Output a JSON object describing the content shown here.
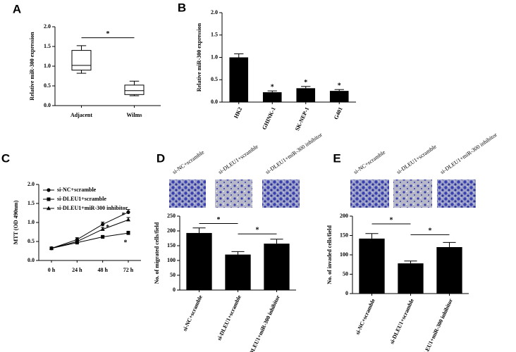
{
  "chart_data": [
    {
      "type": "box",
      "label": "A",
      "ylabel": "Relative miR-300 expression",
      "categories": [
        "Adjacent",
        "Wilms"
      ],
      "values": [
        {
          "min": 0.82,
          "q1": 0.9,
          "median": 1.02,
          "q3": 1.4,
          "max": 1.52
        },
        {
          "min": 0.25,
          "q1": 0.28,
          "median": 0.38,
          "q3": 0.52,
          "max": 0.62
        }
      ],
      "color": "#000000",
      "ylim": [
        0,
        2.0
      ],
      "yticks": [
        {
          "value": 0,
          "label": "0.0"
        },
        {
          "value": 0.5,
          "label": "0.5"
        },
        {
          "value": 1.0,
          "label": "1.0"
        },
        {
          "value": 1.5,
          "label": "1.5"
        },
        {
          "value": 2.0,
          "label": "2.0"
        }
      ],
      "annotations": [
        "*"
      ]
    },
    {
      "type": "bar",
      "label": "B",
      "ylabel": "Relative miR-300 expression",
      "categories": [
        "HK2",
        "GHINK-1",
        "SK-NEP-1",
        "G401"
      ],
      "values": [
        1.0,
        0.22,
        0.31,
        0.25
      ],
      "errors": [
        0.08,
        0.03,
        0.04,
        0.03
      ],
      "color": "#000000",
      "ylim": [
        0,
        2.0
      ],
      "yticks": [
        {
          "value": 0,
          "label": "0.0"
        },
        {
          "value": 0.5,
          "label": "0.5"
        },
        {
          "value": 1.0,
          "label": "1.0"
        },
        {
          "value": 1.5,
          "label": "1.5"
        },
        {
          "value": 2.0,
          "label": "2.0"
        }
      ],
      "annotations": [
        "*",
        "*",
        "*"
      ]
    },
    {
      "type": "line",
      "label": "C",
      "ylabel": "MTT (OD 490nm)",
      "categories": [
        "0 h",
        "24 h",
        "48 h",
        "72 h"
      ],
      "series": [
        {
          "name": "si-NC+scramble",
          "color": "#000000",
          "marker": "circle",
          "values": [
            0.32,
            0.55,
            0.95,
            1.27
          ],
          "errors": [
            0.03,
            0.05,
            0.06,
            0.07
          ]
        },
        {
          "name": "si-DLEU1+scramble",
          "color": "#000000",
          "marker": "square",
          "values": [
            0.32,
            0.47,
            0.62,
            0.72
          ],
          "errors": [
            0.03,
            0.04,
            0.04,
            0.05
          ]
        },
        {
          "name": "si-DLEU1+miR-300 inhibitor",
          "color": "#000000",
          "marker": "triangle",
          "values": [
            0.32,
            0.5,
            0.82,
            1.07
          ],
          "errors": [
            0.03,
            0.04,
            0.05,
            0.06
          ]
        }
      ],
      "ylim": [
        0,
        2.0
      ],
      "yticks": [
        {
          "value": 0,
          "label": "0.0"
        },
        {
          "value": 0.5,
          "label": "0.5"
        },
        {
          "value": 1.0,
          "label": "1.0"
        },
        {
          "value": 1.5,
          "label": "1.5"
        },
        {
          "value": 2.0,
          "label": "2.0"
        }
      ],
      "legend": "top-left",
      "annotations": [
        "*",
        "*",
        "*"
      ]
    },
    {
      "type": "bar",
      "label": "D",
      "ylabel": "No. of migrated cells/field",
      "categories": [
        "si-NC+scramble",
        "si-DLEU1+scramble",
        "si-DLEU1+miR-300 inhibitor"
      ],
      "values": [
        193,
        120,
        157
      ],
      "errors": [
        17,
        10,
        15
      ],
      "color": "#000000",
      "ylim": [
        0,
        250
      ],
      "yticks": [
        0,
        50,
        100,
        150,
        200,
        250
      ],
      "annotations": [
        "*",
        "*"
      ]
    },
    {
      "type": "bar",
      "label": "E",
      "ylabel": "No. of invaded cells/field",
      "categories": [
        "si-NC+scramble",
        "si-DLEU1+scramble",
        "si-DLEU1+miR-300 inhibitor"
      ],
      "values": [
        142,
        78,
        120
      ],
      "errors": [
        13,
        6,
        12
      ],
      "color": "#000000",
      "ylim": [
        0,
        200
      ],
      "yticks": [
        0,
        50,
        100,
        150,
        200
      ],
      "annotations": [
        "*",
        "*"
      ]
    }
  ]
}
